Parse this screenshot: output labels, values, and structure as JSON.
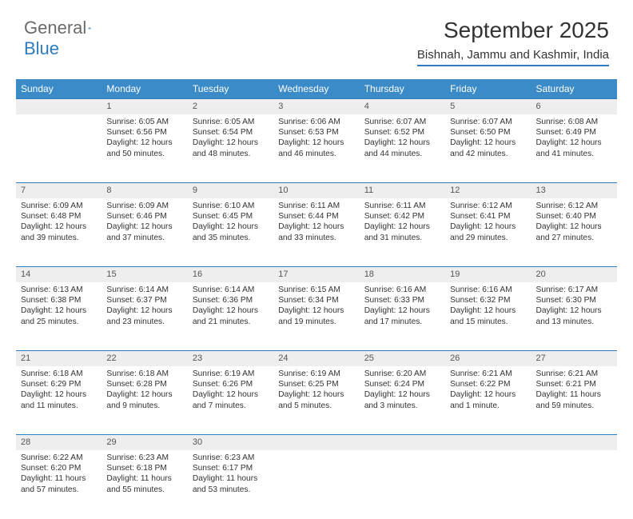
{
  "logo": {
    "text1": "General",
    "text2": "Blue"
  },
  "title": "September 2025",
  "subtitle": "Bishnah, Jammu and Kashmir, India",
  "header_bg": "#3b8bc8",
  "daynum_bg": "#eeeeee",
  "border_color": "#2e7bbf",
  "days": [
    "Sunday",
    "Monday",
    "Tuesday",
    "Wednesday",
    "Thursday",
    "Friday",
    "Saturday"
  ],
  "weeks": [
    [
      {
        "n": "",
        "lines": []
      },
      {
        "n": "1",
        "lines": [
          "Sunrise: 6:05 AM",
          "Sunset: 6:56 PM",
          "Daylight: 12 hours and 50 minutes."
        ]
      },
      {
        "n": "2",
        "lines": [
          "Sunrise: 6:05 AM",
          "Sunset: 6:54 PM",
          "Daylight: 12 hours and 48 minutes."
        ]
      },
      {
        "n": "3",
        "lines": [
          "Sunrise: 6:06 AM",
          "Sunset: 6:53 PM",
          "Daylight: 12 hours and 46 minutes."
        ]
      },
      {
        "n": "4",
        "lines": [
          "Sunrise: 6:07 AM",
          "Sunset: 6:52 PM",
          "Daylight: 12 hours and 44 minutes."
        ]
      },
      {
        "n": "5",
        "lines": [
          "Sunrise: 6:07 AM",
          "Sunset: 6:50 PM",
          "Daylight: 12 hours and 42 minutes."
        ]
      },
      {
        "n": "6",
        "lines": [
          "Sunrise: 6:08 AM",
          "Sunset: 6:49 PM",
          "Daylight: 12 hours and 41 minutes."
        ]
      }
    ],
    [
      {
        "n": "7",
        "lines": [
          "Sunrise: 6:09 AM",
          "Sunset: 6:48 PM",
          "Daylight: 12 hours and 39 minutes."
        ]
      },
      {
        "n": "8",
        "lines": [
          "Sunrise: 6:09 AM",
          "Sunset: 6:46 PM",
          "Daylight: 12 hours and 37 minutes."
        ]
      },
      {
        "n": "9",
        "lines": [
          "Sunrise: 6:10 AM",
          "Sunset: 6:45 PM",
          "Daylight: 12 hours and 35 minutes."
        ]
      },
      {
        "n": "10",
        "lines": [
          "Sunrise: 6:11 AM",
          "Sunset: 6:44 PM",
          "Daylight: 12 hours and 33 minutes."
        ]
      },
      {
        "n": "11",
        "lines": [
          "Sunrise: 6:11 AM",
          "Sunset: 6:42 PM",
          "Daylight: 12 hours and 31 minutes."
        ]
      },
      {
        "n": "12",
        "lines": [
          "Sunrise: 6:12 AM",
          "Sunset: 6:41 PM",
          "Daylight: 12 hours and 29 minutes."
        ]
      },
      {
        "n": "13",
        "lines": [
          "Sunrise: 6:12 AM",
          "Sunset: 6:40 PM",
          "Daylight: 12 hours and 27 minutes."
        ]
      }
    ],
    [
      {
        "n": "14",
        "lines": [
          "Sunrise: 6:13 AM",
          "Sunset: 6:38 PM",
          "Daylight: 12 hours and 25 minutes."
        ]
      },
      {
        "n": "15",
        "lines": [
          "Sunrise: 6:14 AM",
          "Sunset: 6:37 PM",
          "Daylight: 12 hours and 23 minutes."
        ]
      },
      {
        "n": "16",
        "lines": [
          "Sunrise: 6:14 AM",
          "Sunset: 6:36 PM",
          "Daylight: 12 hours and 21 minutes."
        ]
      },
      {
        "n": "17",
        "lines": [
          "Sunrise: 6:15 AM",
          "Sunset: 6:34 PM",
          "Daylight: 12 hours and 19 minutes."
        ]
      },
      {
        "n": "18",
        "lines": [
          "Sunrise: 6:16 AM",
          "Sunset: 6:33 PM",
          "Daylight: 12 hours and 17 minutes."
        ]
      },
      {
        "n": "19",
        "lines": [
          "Sunrise: 6:16 AM",
          "Sunset: 6:32 PM",
          "Daylight: 12 hours and 15 minutes."
        ]
      },
      {
        "n": "20",
        "lines": [
          "Sunrise: 6:17 AM",
          "Sunset: 6:30 PM",
          "Daylight: 12 hours and 13 minutes."
        ]
      }
    ],
    [
      {
        "n": "21",
        "lines": [
          "Sunrise: 6:18 AM",
          "Sunset: 6:29 PM",
          "Daylight: 12 hours and 11 minutes."
        ]
      },
      {
        "n": "22",
        "lines": [
          "Sunrise: 6:18 AM",
          "Sunset: 6:28 PM",
          "Daylight: 12 hours and 9 minutes."
        ]
      },
      {
        "n": "23",
        "lines": [
          "Sunrise: 6:19 AM",
          "Sunset: 6:26 PM",
          "Daylight: 12 hours and 7 minutes."
        ]
      },
      {
        "n": "24",
        "lines": [
          "Sunrise: 6:19 AM",
          "Sunset: 6:25 PM",
          "Daylight: 12 hours and 5 minutes."
        ]
      },
      {
        "n": "25",
        "lines": [
          "Sunrise: 6:20 AM",
          "Sunset: 6:24 PM",
          "Daylight: 12 hours and 3 minutes."
        ]
      },
      {
        "n": "26",
        "lines": [
          "Sunrise: 6:21 AM",
          "Sunset: 6:22 PM",
          "Daylight: 12 hours and 1 minute."
        ]
      },
      {
        "n": "27",
        "lines": [
          "Sunrise: 6:21 AM",
          "Sunset: 6:21 PM",
          "Daylight: 11 hours and 59 minutes."
        ]
      }
    ],
    [
      {
        "n": "28",
        "lines": [
          "Sunrise: 6:22 AM",
          "Sunset: 6:20 PM",
          "Daylight: 11 hours and 57 minutes."
        ]
      },
      {
        "n": "29",
        "lines": [
          "Sunrise: 6:23 AM",
          "Sunset: 6:18 PM",
          "Daylight: 11 hours and 55 minutes."
        ]
      },
      {
        "n": "30",
        "lines": [
          "Sunrise: 6:23 AM",
          "Sunset: 6:17 PM",
          "Daylight: 11 hours and 53 minutes."
        ]
      },
      {
        "n": "",
        "lines": []
      },
      {
        "n": "",
        "lines": []
      },
      {
        "n": "",
        "lines": []
      },
      {
        "n": "",
        "lines": []
      }
    ]
  ]
}
